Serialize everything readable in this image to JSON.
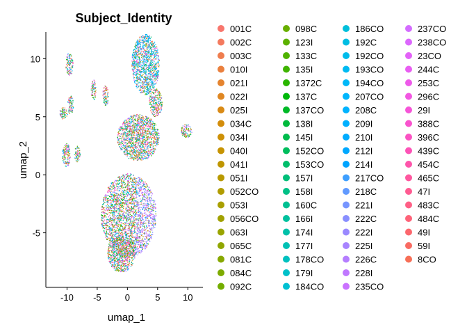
{
  "chart_data": {
    "type": "scatter",
    "title": "Subject_Identity",
    "xlabel": "umap_1",
    "ylabel": "umap_2",
    "xlim": [
      -13.5,
      12.5
    ],
    "ylim": [
      -9.7,
      12.3
    ],
    "x_ticks": [
      -10,
      -5,
      0,
      5,
      10
    ],
    "y_ticks": [
      -5,
      0,
      5,
      10
    ],
    "grid": false,
    "legend_placement": "right",
    "legend_columns": 4,
    "clusters": [
      {
        "cx": 3.0,
        "cy": 9.5,
        "rx": 2.3,
        "ry": 2.6
      },
      {
        "cx": 4.7,
        "cy": 6.2,
        "rx": 1.1,
        "ry": 1.2
      },
      {
        "cx": 9.8,
        "cy": 3.8,
        "rx": 0.9,
        "ry": 0.6
      },
      {
        "cx": 1.8,
        "cy": 3.2,
        "rx": 3.5,
        "ry": 2.0
      },
      {
        "cx": 0.2,
        "cy": -3.5,
        "rx": 4.6,
        "ry": 3.6
      },
      {
        "cx": -1.0,
        "cy": -6.8,
        "rx": 2.3,
        "ry": 1.6
      },
      {
        "cx": -9.6,
        "cy": 9.5,
        "rx": 0.6,
        "ry": 1.0
      },
      {
        "cx": -10.6,
        "cy": 5.3,
        "rx": 0.7,
        "ry": 0.5
      },
      {
        "cx": -9.4,
        "cy": 6.0,
        "rx": 0.5,
        "ry": 0.8
      },
      {
        "cx": -5.6,
        "cy": 7.3,
        "rx": 0.4,
        "ry": 0.9
      },
      {
        "cx": -3.6,
        "cy": 6.8,
        "rx": 0.5,
        "ry": 0.9
      },
      {
        "cx": -10.1,
        "cy": 1.7,
        "rx": 0.7,
        "ry": 1.0
      },
      {
        "cx": -8.3,
        "cy": 1.8,
        "rx": 0.5,
        "ry": 0.7
      }
    ],
    "legend": [
      {
        "label": "001C",
        "color": "#F8766D"
      },
      {
        "label": "002C",
        "color": "#F47A5E"
      },
      {
        "label": "003C",
        "color": "#EF7D4E"
      },
      {
        "label": "010I",
        "color": "#EA803E"
      },
      {
        "label": "021I",
        "color": "#E5842F"
      },
      {
        "label": "022I",
        "color": "#DF8722"
      },
      {
        "label": "025I",
        "color": "#D98A15"
      },
      {
        "label": "034C",
        "color": "#D38D0B"
      },
      {
        "label": "034I",
        "color": "#CD9005"
      },
      {
        "label": "040I",
        "color": "#C69302"
      },
      {
        "label": "041I",
        "color": "#BF9600"
      },
      {
        "label": "051I",
        "color": "#B89900"
      },
      {
        "label": "052CO",
        "color": "#B19C00"
      },
      {
        "label": "053I",
        "color": "#A99F00"
      },
      {
        "label": "056CO",
        "color": "#A1A100"
      },
      {
        "label": "063I",
        "color": "#99A400"
      },
      {
        "label": "065C",
        "color": "#90A600"
      },
      {
        "label": "081C",
        "color": "#87A800"
      },
      {
        "label": "084C",
        "color": "#7DAB00"
      },
      {
        "label": "092C",
        "color": "#73AD00"
      },
      {
        "label": "098C",
        "color": "#68AF00"
      },
      {
        "label": "123I",
        "color": "#5CB100"
      },
      {
        "label": "133C",
        "color": "#4FB300"
      },
      {
        "label": "135I",
        "color": "#3FB400"
      },
      {
        "label": "1372C",
        "color": "#2AB600"
      },
      {
        "label": "137C",
        "color": "#00B80B"
      },
      {
        "label": "137CO",
        "color": "#00B927"
      },
      {
        "label": "138I",
        "color": "#00BA3C"
      },
      {
        "label": "145I",
        "color": "#00BC4D"
      },
      {
        "label": "152CO",
        "color": "#00BD5D"
      },
      {
        "label": "153CO",
        "color": "#00BE6B"
      },
      {
        "label": "157I",
        "color": "#00BF79"
      },
      {
        "label": "158I",
        "color": "#00C086"
      },
      {
        "label": "160C",
        "color": "#00C092"
      },
      {
        "label": "166I",
        "color": "#00C19E"
      },
      {
        "label": "174I",
        "color": "#00C1A9"
      },
      {
        "label": "177I",
        "color": "#00C1B4"
      },
      {
        "label": "178CO",
        "color": "#00C1BF"
      },
      {
        "label": "179I",
        "color": "#00C0C9"
      },
      {
        "label": "184CO",
        "color": "#00C0D2"
      },
      {
        "label": "186CO",
        "color": "#00BFDB"
      },
      {
        "label": "192C",
        "color": "#00BDE3"
      },
      {
        "label": "192CO",
        "color": "#00BCEB"
      },
      {
        "label": "193CO",
        "color": "#00BAF2"
      },
      {
        "label": "194CO",
        "color": "#00B8F8"
      },
      {
        "label": "207CO",
        "color": "#00B6FD"
      },
      {
        "label": "208C",
        "color": "#00B3FF"
      },
      {
        "label": "209I",
        "color": "#00B0FF"
      },
      {
        "label": "210I",
        "color": "#00ACFF"
      },
      {
        "label": "212I",
        "color": "#00A8FF"
      },
      {
        "label": "214I",
        "color": "#00A4FF"
      },
      {
        "label": "217CO",
        "color": "#3E9FFF"
      },
      {
        "label": "218C",
        "color": "#619AFF"
      },
      {
        "label": "221I",
        "color": "#7795FF"
      },
      {
        "label": "222C",
        "color": "#898FFF"
      },
      {
        "label": "222I",
        "color": "#9A89FF"
      },
      {
        "label": "225I",
        "color": "#A884FF"
      },
      {
        "label": "226C",
        "color": "#B57EFF"
      },
      {
        "label": "228I",
        "color": "#C078FF"
      },
      {
        "label": "235CO",
        "color": "#CA72FF"
      },
      {
        "label": "237CO",
        "color": "#D46CFF"
      },
      {
        "label": "238CO",
        "color": "#DC67FD"
      },
      {
        "label": "23CO",
        "color": "#E362F8"
      },
      {
        "label": "244C",
        "color": "#E95EF2"
      },
      {
        "label": "253C",
        "color": "#EE5AEA"
      },
      {
        "label": "296C",
        "color": "#F257E2"
      },
      {
        "label": "29I",
        "color": "#F655D8"
      },
      {
        "label": "388C",
        "color": "#F953CE"
      },
      {
        "label": "396C",
        "color": "#FB53C3"
      },
      {
        "label": "439C",
        "color": "#FD53B7"
      },
      {
        "label": "454C",
        "color": "#FE55AB"
      },
      {
        "label": "465C",
        "color": "#FF579F"
      },
      {
        "label": "47I",
        "color": "#FF5B92"
      },
      {
        "label": "483C",
        "color": "#FF5F86"
      },
      {
        "label": "484C",
        "color": "#FE6379"
      },
      {
        "label": "49I",
        "color": "#FC676D"
      },
      {
        "label": "59I",
        "color": "#F96B62"
      },
      {
        "label": "8CO",
        "color": "#F76F57"
      }
    ]
  }
}
